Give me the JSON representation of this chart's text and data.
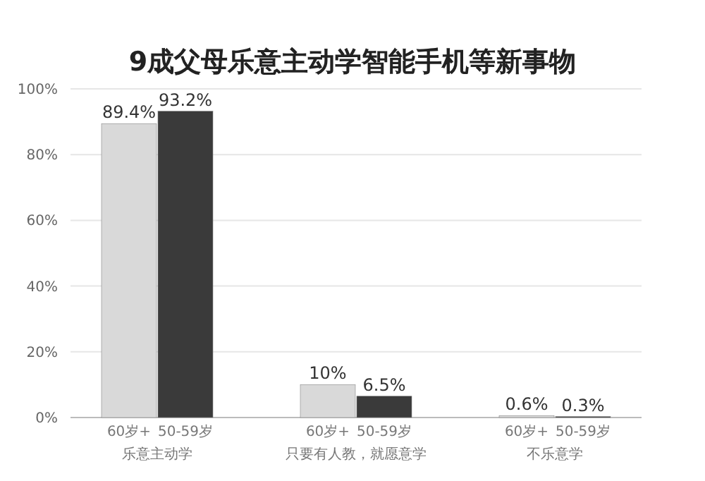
{
  "chart_data": {
    "type": "bar",
    "title": "9成父母乐意主动学智能手机等新事物",
    "categories": [
      "乐意主动学",
      "只要有人教，就愿意学",
      "不乐意学"
    ],
    "series": [
      {
        "name": "60岁+",
        "color": "#d9d9d9",
        "values": [
          89.4,
          10,
          0.6
        ],
        "value_labels": [
          "89.4%",
          "10%",
          "0.6%"
        ]
      },
      {
        "name": "50-59岁",
        "color": "#3a3a3a",
        "values": [
          93.2,
          6.5,
          0.3
        ],
        "value_labels": [
          "93.2%",
          "6.5%",
          "0.3%"
        ]
      }
    ],
    "ylim": [
      0,
      100
    ],
    "yticks": [
      {
        "value": 0,
        "label": "0%"
      },
      {
        "value": 20,
        "label": "20%"
      },
      {
        "value": 40,
        "label": "40%"
      },
      {
        "value": 60,
        "label": "60%"
      },
      {
        "value": 80,
        "label": "80%"
      },
      {
        "value": 100,
        "label": "100%"
      }
    ],
    "grid": "y"
  }
}
